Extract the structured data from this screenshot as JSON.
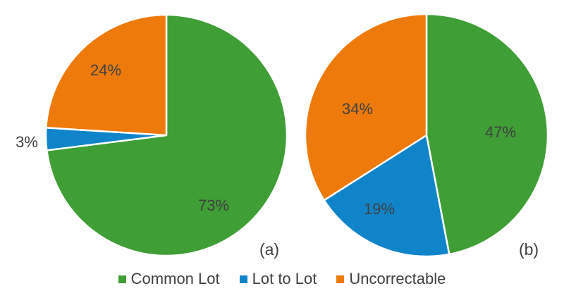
{
  "chart_data": [
    {
      "type": "pie",
      "panel_label": "(a)",
      "categories": [
        "Common Lot",
        "Lot to Lot",
        "Uncorrectable"
      ],
      "values": [
        73,
        3,
        24
      ],
      "data_labels": [
        "73%",
        "3%",
        "24%"
      ],
      "start_angle_deg": 0,
      "direction": "clockwise"
    },
    {
      "type": "pie",
      "panel_label": "(b)",
      "categories": [
        "Common Lot",
        "Lot to Lot",
        "Uncorrectable"
      ],
      "values": [
        47,
        19,
        34
      ],
      "data_labels": [
        "47%",
        "19%",
        "34%"
      ],
      "start_angle_deg": 0,
      "direction": "clockwise"
    }
  ],
  "legend": {
    "placement": "bottom",
    "items": [
      {
        "label": "Common Lot",
        "color": "#3F9E35"
      },
      {
        "label": "Lot to Lot",
        "color": "#1084C9"
      },
      {
        "label": "Uncorrectable",
        "color": "#EE7A0C"
      }
    ]
  },
  "colors": {
    "common_lot": "#3F9E35",
    "lot_to_lot": "#1084C9",
    "uncorrectable": "#EE7A0C",
    "text": "#404040"
  }
}
